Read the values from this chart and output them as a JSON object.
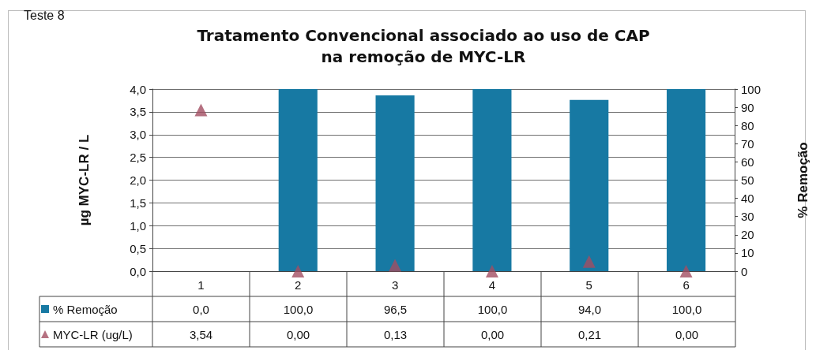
{
  "chart_data": {
    "type": "bar",
    "title": "Tratamento Convencional associado ao uso de CAP\nna remoção de MYC-LR",
    "annotations": [
      "Teste 8"
    ],
    "categories": [
      "1",
      "2",
      "3",
      "4",
      "5",
      "6"
    ],
    "series": [
      {
        "name": "% Remoção",
        "axis": "y2",
        "color": "#1779a3",
        "values": [
          0,
          100,
          96.5,
          100,
          94,
          100
        ],
        "value_labels": [
          "0,0",
          "100,0",
          "96,5",
          "100,0",
          "94,0",
          "100,0"
        ]
      },
      {
        "name": "MYC-LR (ug/L)",
        "type": "scatter",
        "color": "#a24e62",
        "marker": "triangle",
        "values": [
          3.54,
          0,
          0.13,
          0,
          0.21,
          0
        ],
        "value_labels": [
          "3,54",
          "0,00",
          "0,13",
          "0,00",
          "0,21",
          "0,00"
        ]
      }
    ],
    "ylabel": "µg MYC-LR / L",
    "y2label": "% Remoção",
    "ylim": [
      0,
      4
    ],
    "yticks": [
      {
        "value": 0,
        "label": "0,0"
      },
      {
        "value": 0.5,
        "label": "0,5"
      },
      {
        "value": 1,
        "label": "1,0"
      },
      {
        "value": 1.5,
        "label": "1,5"
      },
      {
        "value": 2,
        "label": "2,0"
      },
      {
        "value": 2.5,
        "label": "2,5"
      },
      {
        "value": 3,
        "label": "3,0"
      },
      {
        "value": 3.5,
        "label": "3,5"
      },
      {
        "value": 4,
        "label": "4,0"
      }
    ],
    "y2lim": [
      0,
      100
    ],
    "y2ticks": [
      0,
      10,
      20,
      30,
      40,
      50,
      60,
      70,
      80,
      90,
      100
    ],
    "grid": "y",
    "legend": "bottom left"
  }
}
